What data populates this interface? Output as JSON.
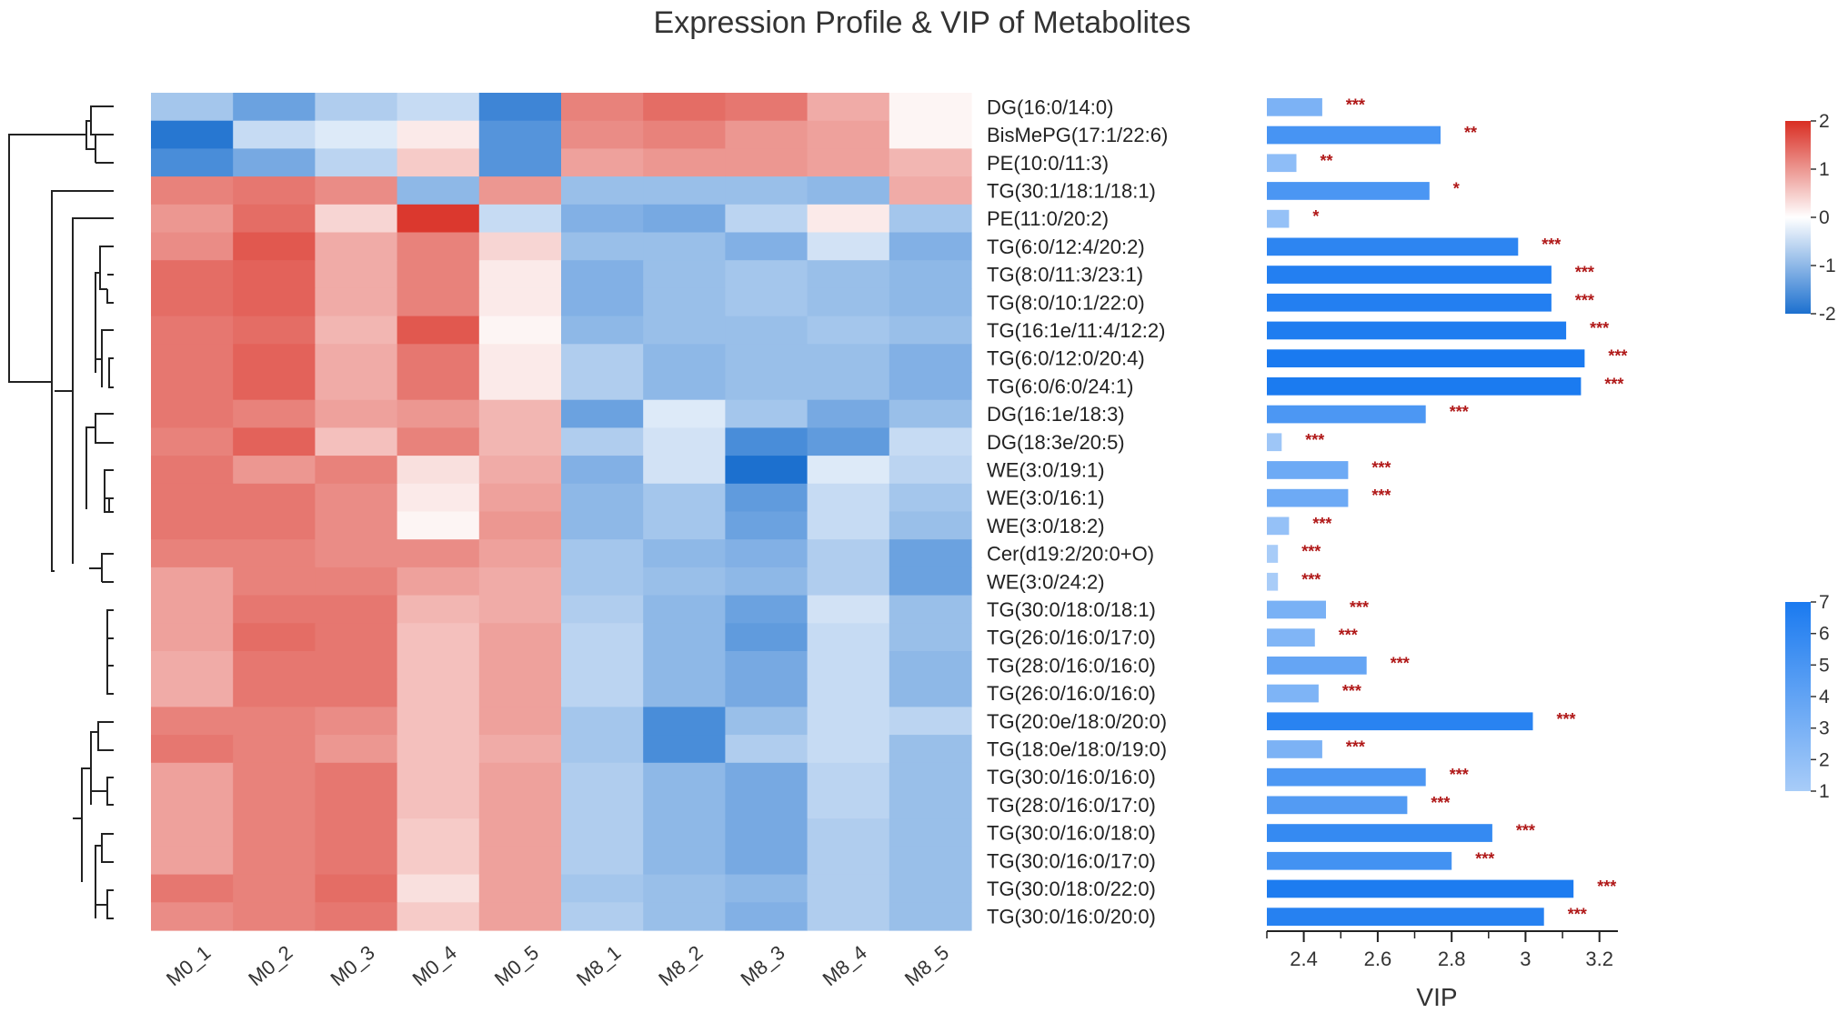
{
  "chart_data": {
    "type": "heatmap",
    "title": "Expression Profile & VIP of Metabolites",
    "samples": [
      "M0_1",
      "M0_2",
      "M0_3",
      "M0_4",
      "M0_5",
      "M8_1",
      "M8_2",
      "M8_3",
      "M8_4",
      "M8_5"
    ],
    "metabolites": [
      "DG(16:0/14:0)",
      "BisMePG(17:1/22:6)",
      "PE(10:0/11:3)",
      "TG(30:1/18:1/18:1)",
      "PE(11:0/20:2)",
      "TG(6:0/12:4/20:2)",
      "TG(8:0/11:3/23:1)",
      "TG(8:0/10:1/22:0)",
      "TG(16:1e/11:4/12:2)",
      "TG(6:0/12:0/20:4)",
      "TG(6:0/6:0/24:1)",
      "DG(16:1e/18:3)",
      "DG(18:3e/20:5)",
      "WE(3:0/19:1)",
      "WE(3:0/16:1)",
      "WE(3:0/18:2)",
      "Cer(d19:2/20:0+O)",
      "WE(3:0/24:2)",
      "TG(30:0/18:0/18:1)",
      "TG(26:0/16:0/17:0)",
      "TG(28:0/16:0/16:0)",
      "TG(26:0/16:0/16:0)",
      "TG(20:0e/18:0/20:0)",
      "TG(18:0e/18:0/19:0)",
      "TG(30:0/16:0/16:0)",
      "TG(28:0/16:0/17:0)",
      "TG(30:0/16:0/18:0)",
      "TG(30:0/16:0/17:0)",
      "TG(30:0/18:0/22:0)",
      "TG(30:0/16:0/20:0)"
    ],
    "zscores": [
      [
        -0.8,
        -1.3,
        -0.7,
        -0.5,
        -1.7,
        1.2,
        1.4,
        1.3,
        0.8,
        0.1
      ],
      [
        -1.9,
        -0.5,
        -0.3,
        0.2,
        -1.5,
        1.1,
        1.2,
        1.0,
        0.9,
        0.1
      ],
      [
        -1.6,
        -1.2,
        -0.6,
        0.5,
        -1.5,
        0.9,
        1.0,
        1.0,
        0.9,
        0.7
      ],
      [
        1.2,
        1.3,
        1.1,
        -1.0,
        1.0,
        -0.9,
        -0.9,
        -0.9,
        -1.0,
        0.8
      ],
      [
        1.0,
        1.4,
        0.4,
        1.9,
        -0.5,
        -1.1,
        -1.2,
        -0.6,
        0.2,
        -0.8
      ],
      [
        1.1,
        1.6,
        0.8,
        1.2,
        0.4,
        -0.9,
        -0.9,
        -1.1,
        -0.4,
        -1.1
      ],
      [
        1.4,
        1.5,
        0.8,
        1.2,
        0.2,
        -1.1,
        -0.9,
        -0.8,
        -0.9,
        -1.0
      ],
      [
        1.4,
        1.5,
        0.8,
        1.2,
        0.2,
        -1.1,
        -0.9,
        -0.8,
        -0.9,
        -1.0
      ],
      [
        1.3,
        1.4,
        0.7,
        1.6,
        0.1,
        -1.0,
        -0.9,
        -0.9,
        -0.8,
        -0.9
      ],
      [
        1.3,
        1.5,
        0.8,
        1.3,
        0.2,
        -0.7,
        -1.0,
        -0.9,
        -0.9,
        -1.1
      ],
      [
        1.3,
        1.5,
        0.8,
        1.3,
        0.2,
        -0.7,
        -1.0,
        -0.9,
        -0.9,
        -1.1
      ],
      [
        1.3,
        1.2,
        0.9,
        1.0,
        0.7,
        -1.3,
        -0.3,
        -0.8,
        -1.2,
        -0.9
      ],
      [
        1.2,
        1.5,
        0.6,
        1.2,
        0.7,
        -0.7,
        -0.4,
        -1.6,
        -1.4,
        -0.5
      ],
      [
        1.3,
        1.0,
        1.2,
        0.3,
        0.8,
        -1.1,
        -0.4,
        -2.0,
        -0.3,
        -0.6
      ],
      [
        1.3,
        1.3,
        1.1,
        0.2,
        0.9,
        -1.0,
        -0.8,
        -1.4,
        -0.5,
        -0.8
      ],
      [
        1.3,
        1.3,
        1.1,
        0.1,
        1.0,
        -1.0,
        -0.8,
        -1.3,
        -0.5,
        -0.9
      ],
      [
        1.2,
        1.2,
        1.1,
        1.1,
        0.9,
        -0.8,
        -1.0,
        -1.1,
        -0.7,
        -1.3
      ],
      [
        0.9,
        1.2,
        1.2,
        0.9,
        0.8,
        -0.8,
        -0.9,
        -1.0,
        -0.7,
        -1.3
      ],
      [
        0.9,
        1.3,
        1.3,
        0.7,
        0.8,
        -0.7,
        -1.0,
        -1.3,
        -0.4,
        -0.9
      ],
      [
        0.9,
        1.4,
        1.3,
        0.6,
        0.9,
        -0.6,
        -1.0,
        -1.4,
        -0.5,
        -0.9
      ],
      [
        0.8,
        1.3,
        1.3,
        0.6,
        0.9,
        -0.6,
        -1.0,
        -1.2,
        -0.5,
        -1.0
      ],
      [
        0.8,
        1.3,
        1.3,
        0.6,
        0.9,
        -0.6,
        -1.0,
        -1.2,
        -0.5,
        -1.0
      ],
      [
        1.2,
        1.2,
        1.1,
        0.6,
        0.9,
        -0.8,
        -1.6,
        -0.9,
        -0.5,
        -0.6
      ],
      [
        1.3,
        1.2,
        1.0,
        0.6,
        0.8,
        -0.8,
        -1.6,
        -0.7,
        -0.5,
        -0.9
      ],
      [
        0.9,
        1.2,
        1.3,
        0.6,
        0.9,
        -0.7,
        -1.0,
        -1.2,
        -0.6,
        -0.9
      ],
      [
        0.9,
        1.2,
        1.3,
        0.6,
        0.9,
        -0.7,
        -1.0,
        -1.2,
        -0.6,
        -0.9
      ],
      [
        0.9,
        1.2,
        1.3,
        0.5,
        0.9,
        -0.7,
        -1.0,
        -1.2,
        -0.7,
        -0.9
      ],
      [
        0.9,
        1.2,
        1.3,
        0.5,
        0.9,
        -0.7,
        -1.0,
        -1.2,
        -0.7,
        -0.9
      ],
      [
        1.3,
        1.2,
        1.4,
        0.3,
        0.9,
        -0.8,
        -0.9,
        -1.0,
        -0.7,
        -0.9
      ],
      [
        1.1,
        1.2,
        1.3,
        0.5,
        0.9,
        -0.7,
        -0.9,
        -1.1,
        -0.7,
        -0.9
      ]
    ],
    "vip": [
      2.45,
      2.77,
      2.38,
      2.74,
      2.36,
      2.98,
      3.07,
      3.07,
      3.11,
      3.16,
      3.15,
      2.73,
      2.34,
      2.52,
      2.52,
      2.36,
      2.33,
      2.33,
      2.46,
      2.43,
      2.57,
      2.44,
      3.02,
      2.45,
      2.73,
      2.68,
      2.91,
      2.8,
      3.13,
      3.05
    ],
    "significance": [
      "***",
      "**",
      "**",
      "*",
      "*",
      "***",
      "***",
      "***",
      "***",
      "***",
      "***",
      "***",
      "***",
      "***",
      "***",
      "***",
      "***",
      "***",
      "***",
      "***",
      "***",
      "***",
      "***",
      "***",
      "***",
      "***",
      "***",
      "***",
      "***",
      "***"
    ],
    "vip_axis": {
      "label": "VIP",
      "xlim": [
        2.3,
        3.25
      ],
      "ticks": [
        "2.4",
        "2.6",
        "2.8",
        "3",
        "3.2"
      ]
    },
    "zscore_legend": {
      "range": [
        -2,
        2
      ],
      "ticks": [
        "2",
        "1",
        "0",
        "-1",
        "-2"
      ],
      "colors": [
        "#d92e23",
        "#ffffff",
        "#1c70cf"
      ]
    },
    "vip_legend": {
      "range": [
        1,
        7
      ],
      "ticks": [
        "7",
        "6",
        "5",
        "4",
        "3",
        "2",
        "1"
      ],
      "colors": [
        "#1a7af0",
        "#a8ccf8"
      ]
    },
    "sig_color": "#b01818"
  }
}
